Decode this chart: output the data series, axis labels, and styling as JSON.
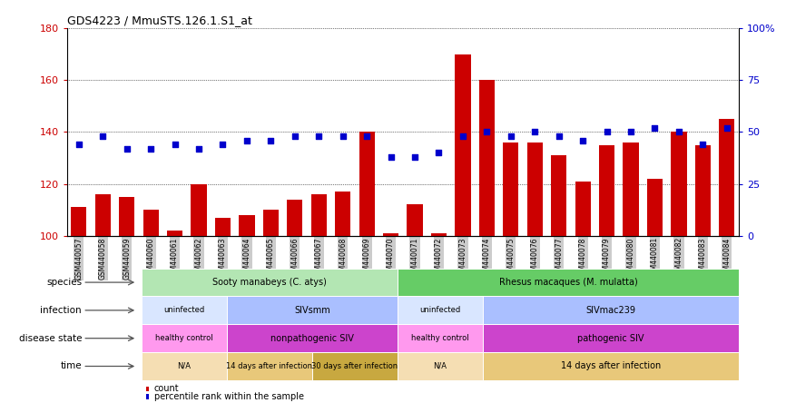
{
  "title": "GDS4223 / MmuSTS.126.1.S1_at",
  "samples": [
    "GSM440057",
    "GSM440058",
    "GSM440059",
    "GSM440060",
    "GSM440061",
    "GSM440062",
    "GSM440063",
    "GSM440064",
    "GSM440065",
    "GSM440066",
    "GSM440067",
    "GSM440068",
    "GSM440069",
    "GSM440070",
    "GSM440071",
    "GSM440072",
    "GSM440073",
    "GSM440074",
    "GSM440075",
    "GSM440076",
    "GSM440077",
    "GSM440078",
    "GSM440079",
    "GSM440080",
    "GSM440081",
    "GSM440082",
    "GSM440083",
    "GSM440084"
  ],
  "counts": [
    111,
    116,
    115,
    110,
    102,
    120,
    107,
    108,
    110,
    114,
    116,
    117,
    140,
    101,
    112,
    101,
    170,
    160,
    136,
    136,
    131,
    121,
    135,
    136,
    122,
    140,
    135,
    145
  ],
  "percentile": [
    44,
    48,
    42,
    42,
    44,
    42,
    44,
    46,
    46,
    48,
    48,
    48,
    48,
    38,
    38,
    40,
    48,
    50,
    48,
    50,
    48,
    46,
    50,
    50,
    52,
    50,
    44,
    52
  ],
  "ylim_left": [
    100,
    180
  ],
  "ylim_right": [
    0,
    100
  ],
  "yticks_left": [
    100,
    120,
    140,
    160,
    180
  ],
  "yticks_right": [
    0,
    25,
    50,
    75,
    100
  ],
  "bar_color": "#cc0000",
  "square_color": "#0000cc",
  "species_regions": [
    {
      "label": "Sooty manabeys (C. atys)",
      "start": 0,
      "end": 12,
      "color": "#b3e6b3"
    },
    {
      "label": "Rhesus macaques (M. mulatta)",
      "start": 12,
      "end": 28,
      "color": "#66cc66"
    }
  ],
  "infection_regions": [
    {
      "label": "uninfected",
      "start": 0,
      "end": 4,
      "color": "#d9e6ff"
    },
    {
      "label": "SIVsmm",
      "start": 4,
      "end": 12,
      "color": "#aabfff"
    },
    {
      "label": "uninfected",
      "start": 12,
      "end": 16,
      "color": "#d9e6ff"
    },
    {
      "label": "SIVmac239",
      "start": 16,
      "end": 28,
      "color": "#aabfff"
    }
  ],
  "disease_regions": [
    {
      "label": "healthy control",
      "start": 0,
      "end": 4,
      "color": "#ff99ee"
    },
    {
      "label": "nonpathogenic SIV",
      "start": 4,
      "end": 12,
      "color": "#cc44cc"
    },
    {
      "label": "healthy control",
      "start": 12,
      "end": 16,
      "color": "#ff99ee"
    },
    {
      "label": "pathogenic SIV",
      "start": 16,
      "end": 28,
      "color": "#cc44cc"
    }
  ],
  "time_regions": [
    {
      "label": "N/A",
      "start": 0,
      "end": 4,
      "color": "#f5deb3"
    },
    {
      "label": "14 days after infection",
      "start": 4,
      "end": 8,
      "color": "#e8c87a"
    },
    {
      "label": "30 days after infection",
      "start": 8,
      "end": 12,
      "color": "#c8a840"
    },
    {
      "label": "N/A",
      "start": 12,
      "end": 16,
      "color": "#f5deb3"
    },
    {
      "label": "14 days after infection",
      "start": 16,
      "end": 28,
      "color": "#e8c87a"
    }
  ],
  "row_labels": [
    "species",
    "infection",
    "disease state",
    "time"
  ],
  "legend_items": [
    {
      "label": "count",
      "color": "#cc0000"
    },
    {
      "label": "percentile rank within the sample",
      "color": "#0000cc"
    }
  ],
  "fig_width": 8.66,
  "fig_height": 4.44,
  "dpi": 100
}
